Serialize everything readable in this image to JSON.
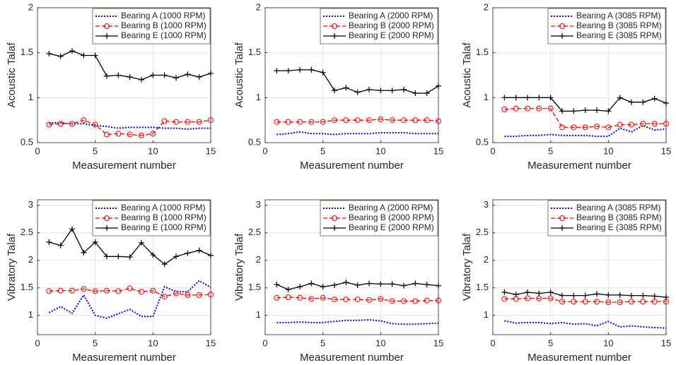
{
  "chart_data": [
    {
      "type": "line",
      "xlabel": "Measurement number",
      "ylabel": "Acoustic Talaf",
      "xlim": [
        0,
        15
      ],
      "xticks": [
        0,
        5,
        10,
        15
      ],
      "ylim": [
        0.5,
        2
      ],
      "yticks": [
        0.5,
        1,
        1.5,
        2
      ],
      "grid": true,
      "legend": "northeast",
      "x": [
        1,
        2,
        3,
        4,
        5,
        6,
        7,
        8,
        9,
        10,
        11,
        12,
        13,
        14,
        15
      ],
      "series": [
        {
          "name": "Bearing A (1000 RPM)",
          "color": "#0000ff",
          "dash": "dotted",
          "marker": "none",
          "values": [
            0.72,
            0.72,
            0.71,
            0.71,
            0.69,
            0.68,
            0.66,
            0.67,
            0.67,
            0.67,
            0.66,
            0.66,
            0.65,
            0.66,
            0.66
          ]
        },
        {
          "name": "Bearing B (1000 RPM)",
          "color": "#ff0000",
          "dash": "dashed",
          "marker": "circle",
          "values": [
            0.7,
            0.71,
            0.71,
            0.75,
            0.7,
            0.59,
            0.6,
            0.59,
            0.58,
            0.6,
            0.74,
            0.73,
            0.73,
            0.73,
            0.75
          ]
        },
        {
          "name": "Bearing E (1000 RPM)",
          "color": "#000000",
          "dash": "solid",
          "marker": "plus",
          "values": [
            1.49,
            1.46,
            1.52,
            1.47,
            1.47,
            1.24,
            1.25,
            1.23,
            1.2,
            1.25,
            1.25,
            1.22,
            1.26,
            1.23,
            1.27
          ]
        }
      ]
    },
    {
      "type": "line",
      "xlabel": "Measurement number",
      "ylabel": "Acoustic Talaf",
      "xlim": [
        0,
        15
      ],
      "xticks": [
        0,
        5,
        10,
        15
      ],
      "ylim": [
        0.5,
        2
      ],
      "yticks": [
        0.5,
        1,
        1.5,
        2
      ],
      "grid": true,
      "legend": "northeast",
      "x": [
        1,
        2,
        3,
        4,
        5,
        6,
        7,
        8,
        9,
        10,
        11,
        12,
        13,
        14,
        15
      ],
      "series": [
        {
          "name": "Bearing A (2000 RPM)",
          "color": "#0000ff",
          "dash": "dotted",
          "marker": "none",
          "values": [
            0.59,
            0.6,
            0.62,
            0.6,
            0.6,
            0.59,
            0.6,
            0.6,
            0.6,
            0.61,
            0.61,
            0.61,
            0.6,
            0.6,
            0.6
          ]
        },
        {
          "name": "Bearing B (2000 RPM)",
          "color": "#ff0000",
          "dash": "dashed",
          "marker": "circle",
          "values": [
            0.73,
            0.73,
            0.73,
            0.73,
            0.73,
            0.75,
            0.75,
            0.75,
            0.75,
            0.76,
            0.75,
            0.75,
            0.75,
            0.75,
            0.74
          ]
        },
        {
          "name": "Bearing E (2000 RPM)",
          "color": "#000000",
          "dash": "solid",
          "marker": "plus",
          "values": [
            1.3,
            1.3,
            1.31,
            1.31,
            1.28,
            1.08,
            1.11,
            1.06,
            1.09,
            1.08,
            1.08,
            1.09,
            1.05,
            1.05,
            1.13
          ]
        }
      ]
    },
    {
      "type": "line",
      "xlabel": "Measurement number",
      "ylabel": "Acoustic Talaf",
      "xlim": [
        0,
        15
      ],
      "xticks": [
        0,
        5,
        10,
        15
      ],
      "ylim": [
        0.5,
        2
      ],
      "yticks": [
        0.5,
        1,
        1.5,
        2
      ],
      "grid": true,
      "legend": "northeast",
      "x": [
        1,
        2,
        3,
        4,
        5,
        6,
        7,
        8,
        9,
        10,
        11,
        12,
        13,
        14,
        15
      ],
      "series": [
        {
          "name": "Bearing A (3085 RPM)",
          "color": "#0000ff",
          "dash": "dotted",
          "marker": "none",
          "values": [
            0.57,
            0.57,
            0.58,
            0.58,
            0.59,
            0.58,
            0.58,
            0.58,
            0.57,
            0.57,
            0.66,
            0.62,
            0.69,
            0.64,
            0.65
          ]
        },
        {
          "name": "Bearing B (3085 RPM)",
          "color": "#ff0000",
          "dash": "dashed",
          "marker": "circle",
          "values": [
            0.87,
            0.88,
            0.88,
            0.88,
            0.88,
            0.67,
            0.67,
            0.67,
            0.68,
            0.67,
            0.7,
            0.7,
            0.71,
            0.71,
            0.71
          ]
        },
        {
          "name": "Bearing E (3085 RPM)",
          "color": "#000000",
          "dash": "solid",
          "marker": "plus",
          "values": [
            1.0,
            1.0,
            1.0,
            1.0,
            1.0,
            0.85,
            0.85,
            0.86,
            0.86,
            0.85,
            1.0,
            0.95,
            0.95,
            0.99,
            0.94
          ]
        }
      ]
    },
    {
      "type": "line",
      "xlabel": "Measurement number",
      "ylabel": "Vibratory Talaf",
      "xlim": [
        0,
        15
      ],
      "xticks": [
        0,
        5,
        10,
        15
      ],
      "ylim": [
        0.65,
        3.1
      ],
      "yticks": [
        1,
        1.5,
        2,
        2.5,
        3
      ],
      "grid": true,
      "legend": "northeast",
      "x": [
        1,
        2,
        3,
        4,
        5,
        6,
        7,
        8,
        9,
        10,
        11,
        12,
        13,
        14,
        15
      ],
      "series": [
        {
          "name": "Bearing A (1000 RPM)",
          "color": "#0000ff",
          "dash": "dotted",
          "marker": "none",
          "values": [
            1.05,
            1.16,
            1.04,
            1.37,
            1.0,
            0.95,
            1.03,
            1.11,
            0.98,
            0.98,
            1.52,
            1.43,
            1.43,
            1.63,
            1.51
          ]
        },
        {
          "name": "Bearing B (1000 RPM)",
          "color": "#ff0000",
          "dash": "dashed",
          "marker": "circle",
          "values": [
            1.44,
            1.45,
            1.45,
            1.48,
            1.44,
            1.45,
            1.44,
            1.49,
            1.43,
            1.45,
            1.34,
            1.4,
            1.37,
            1.37,
            1.38
          ]
        },
        {
          "name": "Bearing E (1000 RPM)",
          "color": "#000000",
          "dash": "solid",
          "marker": "plus",
          "values": [
            2.33,
            2.27,
            2.57,
            2.14,
            2.33,
            2.07,
            2.07,
            2.06,
            2.32,
            2.1,
            1.93,
            2.07,
            2.13,
            2.18,
            2.09
          ]
        }
      ]
    },
    {
      "type": "line",
      "xlabel": "Measurement number",
      "ylabel": "Vibratory Talaf",
      "xlim": [
        0,
        15
      ],
      "xticks": [
        0,
        5,
        10,
        15
      ],
      "ylim": [
        0.65,
        3.1
      ],
      "yticks": [
        1,
        1.5,
        2,
        2.5,
        3
      ],
      "grid": true,
      "legend": "northeast",
      "x": [
        1,
        2,
        3,
        4,
        5,
        6,
        7,
        8,
        9,
        10,
        11,
        12,
        13,
        14,
        15
      ],
      "series": [
        {
          "name": "Bearing A (2000 RPM)",
          "color": "#0000ff",
          "dash": "dotted",
          "marker": "none",
          "values": [
            0.87,
            0.87,
            0.88,
            0.87,
            0.87,
            0.89,
            0.91,
            0.91,
            0.92,
            0.9,
            0.85,
            0.84,
            0.84,
            0.85,
            0.86
          ]
        },
        {
          "name": "Bearing B (2000 RPM)",
          "color": "#ff0000",
          "dash": "dashed",
          "marker": "circle",
          "values": [
            1.32,
            1.33,
            1.32,
            1.3,
            1.32,
            1.29,
            1.29,
            1.29,
            1.28,
            1.3,
            1.26,
            1.26,
            1.26,
            1.27,
            1.27
          ]
        },
        {
          "name": "Bearing E (2000 RPM)",
          "color": "#000000",
          "dash": "solid",
          "marker": "plus",
          "values": [
            1.56,
            1.47,
            1.52,
            1.58,
            1.52,
            1.55,
            1.6,
            1.55,
            1.58,
            1.57,
            1.57,
            1.54,
            1.58,
            1.56,
            1.54
          ]
        }
      ]
    },
    {
      "type": "line",
      "xlabel": "Measurement number",
      "ylabel": "Vibratory Talaf",
      "xlim": [
        0,
        15
      ],
      "xticks": [
        0,
        5,
        10,
        15
      ],
      "ylim": [
        0.65,
        3.1
      ],
      "yticks": [
        1,
        1.5,
        2,
        2.5,
        3
      ],
      "grid": true,
      "legend": "northeast",
      "x": [
        1,
        2,
        3,
        4,
        5,
        6,
        7,
        8,
        9,
        10,
        11,
        12,
        13,
        14,
        15
      ],
      "series": [
        {
          "name": "Bearing A (3085 RPM)",
          "color": "#0000ff",
          "dash": "dotted",
          "marker": "none",
          "values": [
            0.9,
            0.86,
            0.87,
            0.87,
            0.85,
            0.87,
            0.84,
            0.85,
            0.81,
            0.89,
            0.79,
            0.81,
            0.79,
            0.78,
            0.77
          ]
        },
        {
          "name": "Bearing B (3085 RPM)",
          "color": "#ff0000",
          "dash": "dashed",
          "marker": "circle",
          "values": [
            1.3,
            1.3,
            1.31,
            1.31,
            1.31,
            1.25,
            1.25,
            1.25,
            1.25,
            1.24,
            1.24,
            1.25,
            1.25,
            1.25,
            1.25
          ]
        },
        {
          "name": "Bearing E (3085 RPM)",
          "color": "#000000",
          "dash": "solid",
          "marker": "plus",
          "values": [
            1.42,
            1.38,
            1.42,
            1.4,
            1.42,
            1.36,
            1.36,
            1.36,
            1.39,
            1.37,
            1.37,
            1.36,
            1.36,
            1.35,
            1.33
          ]
        }
      ]
    }
  ]
}
